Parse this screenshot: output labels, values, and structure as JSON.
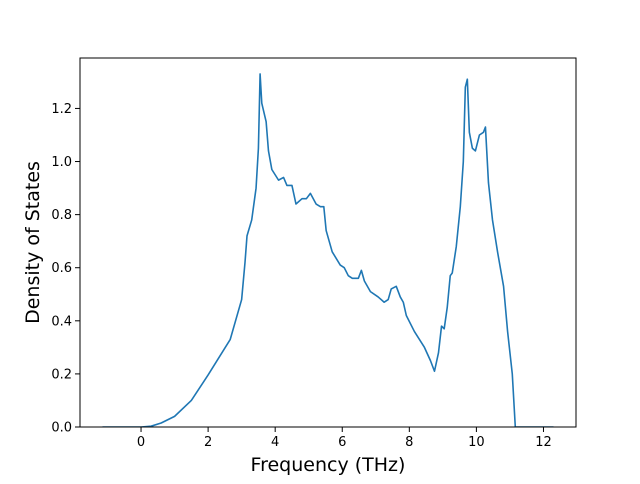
{
  "chart_data": {
    "type": "line",
    "xlabel": "Frequency (THz)",
    "ylabel": "Density of States",
    "xlim": [
      -1.82,
      12.97
    ],
    "ylim": [
      0,
      1.39
    ],
    "xticks": [
      0,
      2,
      4,
      6,
      8,
      10,
      12
    ],
    "yticks": [
      {
        "value": 0,
        "label": "0.0"
      },
      0.2,
      0.4,
      0.6,
      0.8,
      {
        "value": 1,
        "label": "1.0"
      },
      1.2
    ],
    "x": [
      -1.15,
      0,
      0.3,
      0.6,
      1.0,
      1.5,
      2.0,
      2.66,
      3.0,
      3.1,
      3.16,
      3.3,
      3.43,
      3.5,
      3.55,
      3.6,
      3.73,
      3.8,
      3.9,
      4.1,
      4.25,
      4.35,
      4.5,
      4.62,
      4.8,
      4.93,
      5.05,
      5.22,
      5.35,
      5.45,
      5.52,
      5.7,
      5.94,
      6.06,
      6.18,
      6.3,
      6.48,
      6.57,
      6.66,
      6.84,
      7.07,
      7.25,
      7.37,
      7.46,
      7.61,
      7.73,
      7.82,
      7.91,
      8.15,
      8.45,
      8.63,
      8.75,
      8.87,
      8.96,
      9.04,
      9.13,
      9.22,
      9.28,
      9.4,
      9.52,
      9.61,
      9.67,
      9.73,
      9.79,
      9.88,
      9.97,
      10.09,
      10.21,
      10.27,
      10.36,
      10.48,
      10.63,
      10.81,
      10.93,
      11.07,
      11.16,
      12.3
    ],
    "series": [
      {
        "color": "#1f77b4",
        "values": [
          0,
          0,
          0.003,
          0.015,
          0.04,
          0.1,
          0.196,
          0.33,
          0.48,
          0.62,
          0.72,
          0.78,
          0.9,
          1.05,
          1.33,
          1.22,
          1.15,
          1.04,
          0.97,
          0.93,
          0.94,
          0.91,
          0.91,
          0.84,
          0.86,
          0.86,
          0.88,
          0.84,
          0.83,
          0.83,
          0.74,
          0.66,
          0.61,
          0.6,
          0.57,
          0.56,
          0.56,
          0.59,
          0.55,
          0.51,
          0.49,
          0.47,
          0.48,
          0.52,
          0.53,
          0.49,
          0.47,
          0.42,
          0.36,
          0.3,
          0.25,
          0.21,
          0.28,
          0.38,
          0.37,
          0.45,
          0.57,
          0.58,
          0.68,
          0.83,
          1.0,
          1.28,
          1.31,
          1.11,
          1.05,
          1.04,
          1.1,
          1.11,
          1.13,
          0.92,
          0.78,
          0.66,
          0.53,
          0.36,
          0.2,
          0,
          0
        ]
      }
    ]
  }
}
